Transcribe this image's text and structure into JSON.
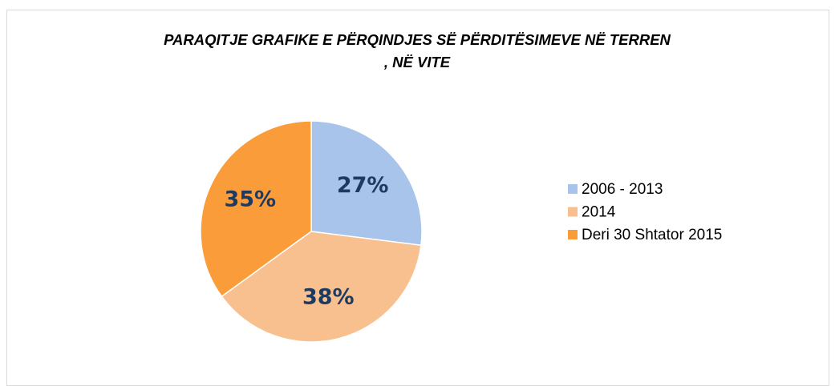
{
  "chart_data": {
    "type": "pie",
    "title": "PARAQITJE GRAFIKE E PËRQINDJES SË PËRDITËSIMEVE NË TERREN , NË VITE",
    "categories": [
      "2006 - 2013",
      "2014",
      "Deri 30 Shtator 2015"
    ],
    "values": [
      27,
      38,
      35
    ],
    "value_labels": [
      "27%",
      "38%",
      "35%"
    ],
    "colors": [
      "#a9c4ea",
      "#f9c08f",
      "#fb9c3a"
    ],
    "legend": "right"
  }
}
